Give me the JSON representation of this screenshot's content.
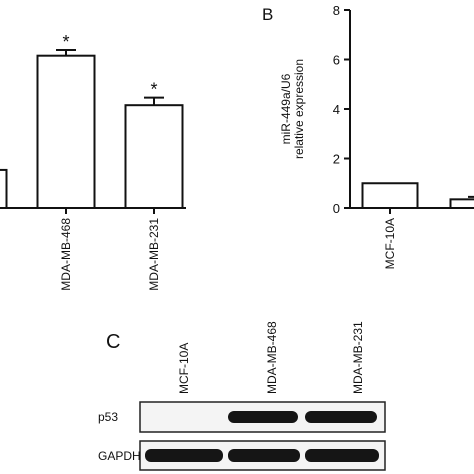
{
  "chart_data": [
    {
      "type": "bar",
      "categories": [
        null,
        "MDA-MB-468",
        "MDA-MB-231"
      ],
      "values": [
        1,
        4,
        2.7
      ],
      "errors": [
        null,
        0.15,
        0.2
      ],
      "annotations": [
        null,
        "*",
        "*"
      ],
      "ylim": [
        0,
        5.2
      ],
      "color": "#ffffff"
    },
    {
      "type": "bar",
      "panel": "B",
      "ylabel": [
        "miR-449a/U6",
        "relative expression"
      ],
      "categories": [
        "MCF-10A",
        null
      ],
      "values": [
        1,
        0.35
      ],
      "errors": [
        null,
        0.1
      ],
      "ylim": [
        0,
        8
      ],
      "yticks": [
        0,
        2,
        4,
        6,
        8
      ],
      "color": "#ffffff"
    }
  ],
  "blot": {
    "panel": "C",
    "lanes": [
      "MCF-10A",
      "MDA-MB-468",
      "MDA-MB-231"
    ],
    "rows": [
      "p53",
      "GAPDH"
    ]
  }
}
